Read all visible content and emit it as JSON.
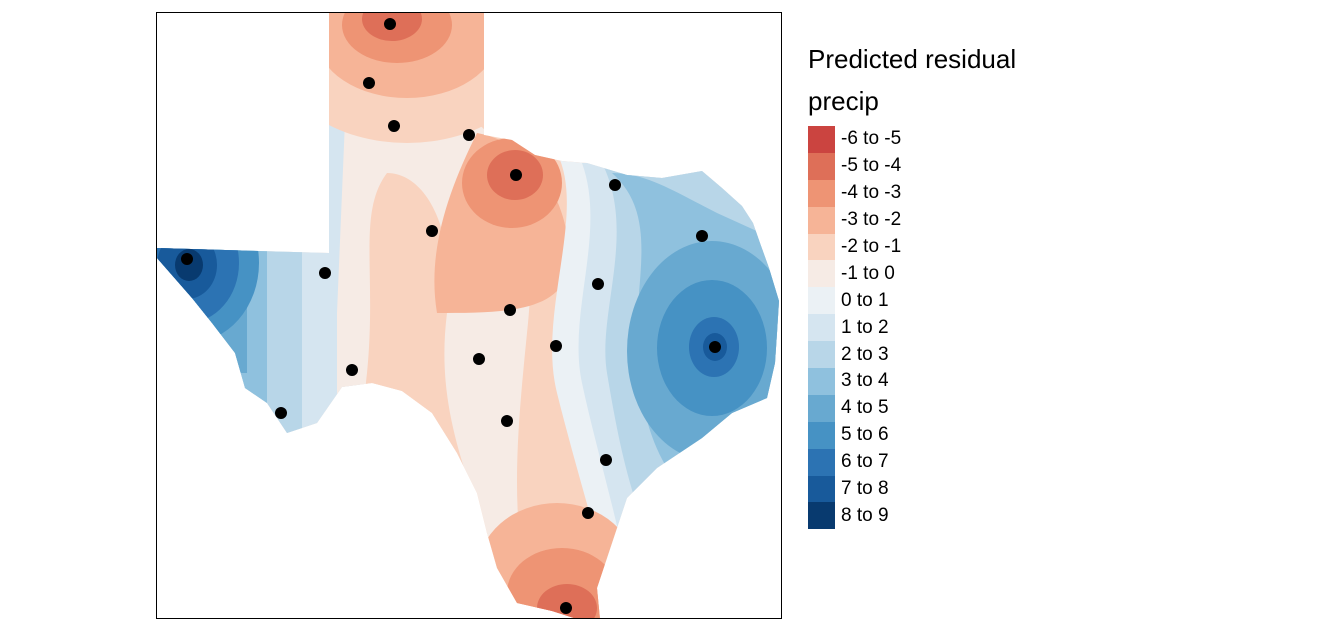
{
  "legend": {
    "title": "Predicted residual precip",
    "classes": [
      {
        "label": "-6 to -5",
        "color": "#cb4440"
      },
      {
        "label": "-5 to -4",
        "color": "#de6f58"
      },
      {
        "label": "-4 to -3",
        "color": "#ee9474"
      },
      {
        "label": "-3 to -2",
        "color": "#f6b497"
      },
      {
        "label": "-2 to -1",
        "color": "#f9d3bf"
      },
      {
        "label": "-1 to 0",
        "color": "#f6ebe5"
      },
      {
        "label": "0 to 1",
        "color": "#ebf1f5"
      },
      {
        "label": "1 to 2",
        "color": "#d5e5f0"
      },
      {
        "label": "2 to 3",
        "color": "#b8d6e8"
      },
      {
        "label": "3 to 4",
        "color": "#8fc1de"
      },
      {
        "label": "4 to 5",
        "color": "#68a9d0"
      },
      {
        "label": "5 to 6",
        "color": "#4692c4"
      },
      {
        "label": "6 to 7",
        "color": "#2c73b3"
      },
      {
        "label": "7 to 8",
        "color": "#185a9b"
      },
      {
        "label": "8 to 9",
        "color": "#083a6f"
      }
    ]
  },
  "map": {
    "region": "Texas",
    "point_symbol": "station-point",
    "point_color": "#000000"
  }
}
